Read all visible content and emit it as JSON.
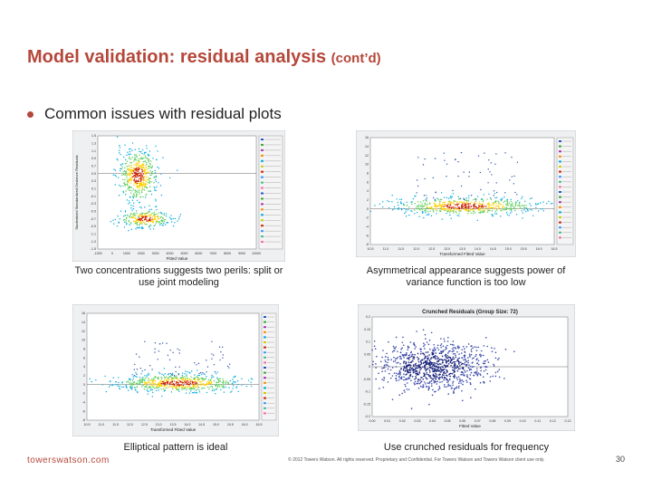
{
  "slide": {
    "title": "Model validation: residual analysis",
    "title_suffix": "(cont’d)",
    "bullet": "Common issues with residual plots"
  },
  "captions": {
    "top_left": "Two concentrations suggests two perils: split or use joint modeling",
    "top_right": "Asymmetrical appearance suggests power of variance function is too low",
    "bottom_left": "Elliptical pattern is ideal",
    "bottom_right": "Use crunched residuals for frequency"
  },
  "chart_data": [
    {
      "type": "scatter",
      "id": "two-concentrations",
      "xlabel": "Fitted Value",
      "ylabel": "Studentized Standardized Deviance Residuals",
      "xticks": [
        "-1000",
        "0",
        "1000",
        "2000",
        "3000",
        "4000",
        "5000",
        "6000",
        "7000",
        "8000",
        "9000",
        "10000"
      ],
      "yticks": [
        "1.5",
        "1.3",
        "1.1",
        "0.9",
        "0.7",
        "0.5",
        "0.3",
        "0.1",
        "-0.1",
        "-0.3",
        "-0.5",
        "-0.7",
        "-0.9",
        "-1.1",
        "-1.3",
        "-1.5"
      ],
      "clusters": [
        {
          "x": 1800,
          "y": 0.45,
          "sx": 700,
          "sy": 0.35,
          "n": 520
        },
        {
          "x": 2300,
          "y": -0.7,
          "sx": 900,
          "sy": 0.12,
          "n": 260
        }
      ],
      "reference_line_y": 0.5
    },
    {
      "type": "scatter",
      "id": "asymmetric",
      "xlabel": "Transformed Fitted Value",
      "xticks": [
        "10.5",
        "11.0",
        "11.5",
        "12.0",
        "12.5",
        "13.0",
        "13.5",
        "14.0",
        "14.5",
        "15.0",
        "15.5",
        "16.0",
        "16.5"
      ],
      "yticks": [
        "16",
        "14",
        "12",
        "10",
        "8",
        "6",
        "4",
        "2",
        "0",
        "-2",
        "-4",
        "-6",
        "-8"
      ],
      "clusters": [
        {
          "x": 13.6,
          "y": 0.6,
          "sx": 1.2,
          "sy": 1.0,
          "n": 600
        }
      ],
      "reference_line_y": 0
    },
    {
      "type": "scatter",
      "id": "elliptical",
      "xlabel": "Transformed Fitted Value",
      "xticks": [
        "10.5",
        "11.0",
        "11.5",
        "12.0",
        "12.5",
        "13.0",
        "13.5",
        "14.0",
        "14.5",
        "15.0",
        "15.5",
        "16.0",
        "16.5"
      ],
      "yticks": [
        "16",
        "14",
        "12",
        "10",
        "8",
        "6",
        "4",
        "2",
        "0",
        "-2",
        "-4",
        "-6",
        "-8"
      ],
      "clusters": [
        {
          "x": 13.7,
          "y": 0.3,
          "sx": 1.1,
          "sy": 1.0,
          "n": 650
        }
      ],
      "reference_line_y": 0
    },
    {
      "type": "scatter",
      "id": "crunched",
      "title": "Crunched Residuals (Group Size: 72)",
      "xlabel": "Fitted Value",
      "xticks": [
        "0.00",
        "0.01",
        "0.02",
        "0.03",
        "0.04",
        "0.05",
        "0.06",
        "0.07",
        "0.08",
        "0.09",
        "0.10",
        "0.11",
        "0.12",
        "0.13"
      ],
      "yticks": [
        "0.2",
        "0.15",
        "0.1",
        "0.05",
        "0",
        "-0.05",
        "-0.1",
        "-0.15",
        "-0.2"
      ],
      "clusters": [
        {
          "x": 0.04,
          "y": 0.0,
          "sx": 0.018,
          "sy": 0.05,
          "n": 900
        }
      ],
      "reference_line_y": 0
    }
  ],
  "footer": {
    "brand": "towerswatson.com",
    "copyright": "© 2012 Towers Watson. All rights reserved. Proprietary and Confidential. For Towers Watson and Towers Watson client use only.",
    "page": "30"
  },
  "colors": {
    "title": "#b5473a",
    "core": "#cc2200",
    "mid": "#ffd000",
    "outer": "#00aadd",
    "crunch": "#1a237e"
  }
}
